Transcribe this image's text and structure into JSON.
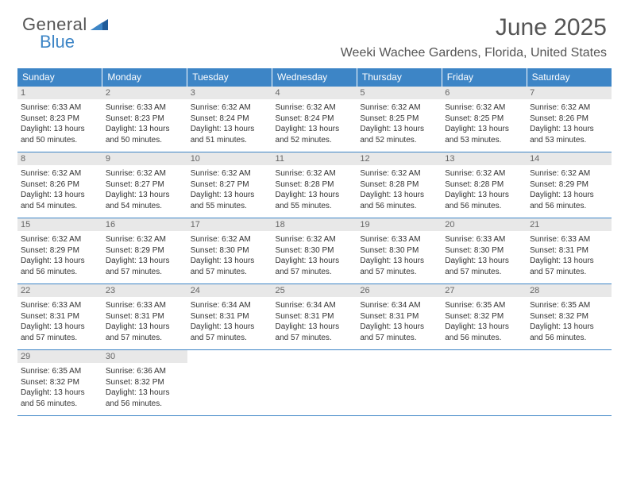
{
  "logo": {
    "word1": "General",
    "word2": "Blue",
    "accent_color": "#3d85c6"
  },
  "header": {
    "title": "June 2025",
    "location": "Weeki Wachee Gardens, Florida, United States"
  },
  "calendar": {
    "day_headers": [
      "Sunday",
      "Monday",
      "Tuesday",
      "Wednesday",
      "Thursday",
      "Friday",
      "Saturday"
    ],
    "header_bg": "#3d85c6",
    "header_fg": "#ffffff",
    "rule_color": "#3d85c6",
    "daynum_bg": "#e8e8e8",
    "cell_font_size": 10,
    "days": [
      {
        "n": 1,
        "sr": "6:33 AM",
        "ss": "8:23 PM",
        "dl": "13 hours and 50 minutes."
      },
      {
        "n": 2,
        "sr": "6:33 AM",
        "ss": "8:23 PM",
        "dl": "13 hours and 50 minutes."
      },
      {
        "n": 3,
        "sr": "6:32 AM",
        "ss": "8:24 PM",
        "dl": "13 hours and 51 minutes."
      },
      {
        "n": 4,
        "sr": "6:32 AM",
        "ss": "8:24 PM",
        "dl": "13 hours and 52 minutes."
      },
      {
        "n": 5,
        "sr": "6:32 AM",
        "ss": "8:25 PM",
        "dl": "13 hours and 52 minutes."
      },
      {
        "n": 6,
        "sr": "6:32 AM",
        "ss": "8:25 PM",
        "dl": "13 hours and 53 minutes."
      },
      {
        "n": 7,
        "sr": "6:32 AM",
        "ss": "8:26 PM",
        "dl": "13 hours and 53 minutes."
      },
      {
        "n": 8,
        "sr": "6:32 AM",
        "ss": "8:26 PM",
        "dl": "13 hours and 54 minutes."
      },
      {
        "n": 9,
        "sr": "6:32 AM",
        "ss": "8:27 PM",
        "dl": "13 hours and 54 minutes."
      },
      {
        "n": 10,
        "sr": "6:32 AM",
        "ss": "8:27 PM",
        "dl": "13 hours and 55 minutes."
      },
      {
        "n": 11,
        "sr": "6:32 AM",
        "ss": "8:28 PM",
        "dl": "13 hours and 55 minutes."
      },
      {
        "n": 12,
        "sr": "6:32 AM",
        "ss": "8:28 PM",
        "dl": "13 hours and 56 minutes."
      },
      {
        "n": 13,
        "sr": "6:32 AM",
        "ss": "8:28 PM",
        "dl": "13 hours and 56 minutes."
      },
      {
        "n": 14,
        "sr": "6:32 AM",
        "ss": "8:29 PM",
        "dl": "13 hours and 56 minutes."
      },
      {
        "n": 15,
        "sr": "6:32 AM",
        "ss": "8:29 PM",
        "dl": "13 hours and 56 minutes."
      },
      {
        "n": 16,
        "sr": "6:32 AM",
        "ss": "8:29 PM",
        "dl": "13 hours and 57 minutes."
      },
      {
        "n": 17,
        "sr": "6:32 AM",
        "ss": "8:30 PM",
        "dl": "13 hours and 57 minutes."
      },
      {
        "n": 18,
        "sr": "6:32 AM",
        "ss": "8:30 PM",
        "dl": "13 hours and 57 minutes."
      },
      {
        "n": 19,
        "sr": "6:33 AM",
        "ss": "8:30 PM",
        "dl": "13 hours and 57 minutes."
      },
      {
        "n": 20,
        "sr": "6:33 AM",
        "ss": "8:30 PM",
        "dl": "13 hours and 57 minutes."
      },
      {
        "n": 21,
        "sr": "6:33 AM",
        "ss": "8:31 PM",
        "dl": "13 hours and 57 minutes."
      },
      {
        "n": 22,
        "sr": "6:33 AM",
        "ss": "8:31 PM",
        "dl": "13 hours and 57 minutes."
      },
      {
        "n": 23,
        "sr": "6:33 AM",
        "ss": "8:31 PM",
        "dl": "13 hours and 57 minutes."
      },
      {
        "n": 24,
        "sr": "6:34 AM",
        "ss": "8:31 PM",
        "dl": "13 hours and 57 minutes."
      },
      {
        "n": 25,
        "sr": "6:34 AM",
        "ss": "8:31 PM",
        "dl": "13 hours and 57 minutes."
      },
      {
        "n": 26,
        "sr": "6:34 AM",
        "ss": "8:31 PM",
        "dl": "13 hours and 57 minutes."
      },
      {
        "n": 27,
        "sr": "6:35 AM",
        "ss": "8:32 PM",
        "dl": "13 hours and 56 minutes."
      },
      {
        "n": 28,
        "sr": "6:35 AM",
        "ss": "8:32 PM",
        "dl": "13 hours and 56 minutes."
      },
      {
        "n": 29,
        "sr": "6:35 AM",
        "ss": "8:32 PM",
        "dl": "13 hours and 56 minutes."
      },
      {
        "n": 30,
        "sr": "6:36 AM",
        "ss": "8:32 PM",
        "dl": "13 hours and 56 minutes."
      }
    ],
    "labels": {
      "sunrise_prefix": "Sunrise: ",
      "sunset_prefix": "Sunset: ",
      "daylight_prefix": "Daylight: "
    }
  }
}
